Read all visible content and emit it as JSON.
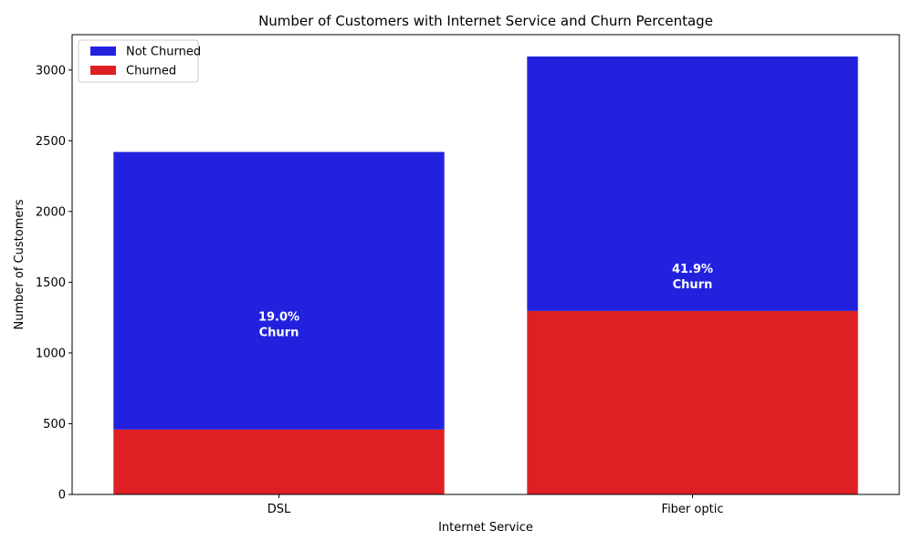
{
  "chart_data": {
    "type": "bar",
    "stacked": true,
    "title": "Number of Customers with Internet Service and Churn Percentage",
    "xlabel": "Internet Service",
    "ylabel": "Number of Customers",
    "categories": [
      "DSL",
      "Fiber optic"
    ],
    "series": [
      {
        "name": "Churned",
        "values": [
          459,
          1297
        ],
        "color": "#de2024"
      },
      {
        "name": "Not Churned",
        "values": [
          1962,
          1799
        ],
        "color": "#2222de"
      }
    ],
    "annotations": [
      {
        "percent": "19.0%",
        "word": "Churn"
      },
      {
        "percent": "41.9%",
        "word": "Churn"
      }
    ],
    "ylim": [
      0,
      3250
    ],
    "yticks": [
      0,
      500,
      1000,
      1500,
      2000,
      2500,
      3000
    ],
    "grid": false,
    "legend": {
      "placement": "top-left",
      "entries": [
        {
          "label": "Not Churned",
          "color": "#2222de"
        },
        {
          "label": "Churned",
          "color": "#de2024"
        }
      ]
    }
  }
}
